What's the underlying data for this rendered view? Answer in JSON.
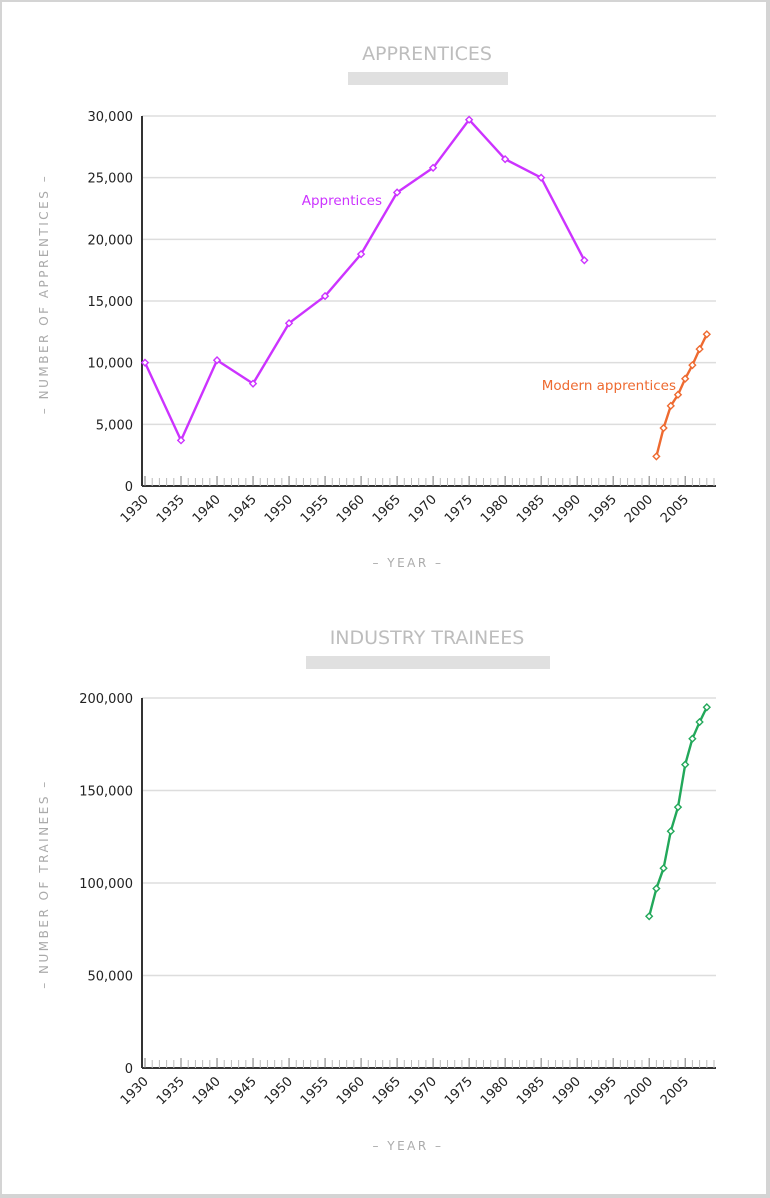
{
  "chart_data": [
    {
      "type": "line",
      "title": "APPRENTICES",
      "xlabel": "– YEAR –",
      "ylabel": "– NUMBER OF APPRENTICES –",
      "xlim": [
        1930,
        2009
      ],
      "ylim": [
        0,
        30000
      ],
      "x_ticks": [
        1930,
        1935,
        1940,
        1945,
        1950,
        1955,
        1960,
        1965,
        1970,
        1975,
        1980,
        1985,
        1990,
        1995,
        2000,
        2005
      ],
      "y_ticks": [
        0,
        5000,
        10000,
        15000,
        20000,
        25000,
        30000
      ],
      "y_tick_labels": [
        "0",
        "5,000",
        "10,000",
        "15,000",
        "20,000",
        "25,000",
        "30,000"
      ],
      "grid": true,
      "series": [
        {
          "name": "Apprentices",
          "color": "#cc33ff",
          "x": [
            1930,
            1935,
            1940,
            1945,
            1950,
            1955,
            1960,
            1965,
            1970,
            1975,
            1980,
            1985,
            1991
          ],
          "y": [
            10000,
            3700,
            10200,
            8300,
            13200,
            15400,
            18800,
            23800,
            25800,
            29700,
            26500,
            25000,
            18300
          ]
        },
        {
          "name": "Modern apprentices",
          "color": "#ee6a30",
          "x": [
            2001,
            2002,
            2003,
            2004,
            2005,
            2006,
            2007,
            2008
          ],
          "y": [
            2400,
            4700,
            6500,
            7400,
            8700,
            9800,
            11100,
            12300
          ]
        }
      ]
    },
    {
      "type": "line",
      "title": "INDUSTRY TRAINEES",
      "xlabel": "– YEAR –",
      "ylabel": "– NUMBER OF TRAINEES –",
      "xlim": [
        1930,
        2009
      ],
      "ylim": [
        0,
        200000
      ],
      "x_ticks": [
        1930,
        1935,
        1940,
        1945,
        1950,
        1955,
        1960,
        1965,
        1970,
        1975,
        1980,
        1985,
        1990,
        1995,
        2000,
        2005
      ],
      "y_ticks": [
        0,
        50000,
        100000,
        150000,
        200000
      ],
      "y_tick_labels": [
        "0",
        "50,000",
        "100,000",
        "150,000",
        "200,000"
      ],
      "grid": true,
      "series": [
        {
          "name": "",
          "color": "#22a85a",
          "x": [
            2000,
            2001,
            2002,
            2003,
            2004,
            2005,
            2006,
            2007,
            2008
          ],
          "y": [
            82000,
            97000,
            108000,
            128000,
            141000,
            164000,
            178000,
            187000,
            195000
          ]
        }
      ]
    }
  ],
  "colors": {
    "grid": "#dddddd",
    "axis": "#333333",
    "title": "#bdbdbd",
    "title_bar": "#e0e0e0",
    "axis_label": "#aaaaaa"
  }
}
